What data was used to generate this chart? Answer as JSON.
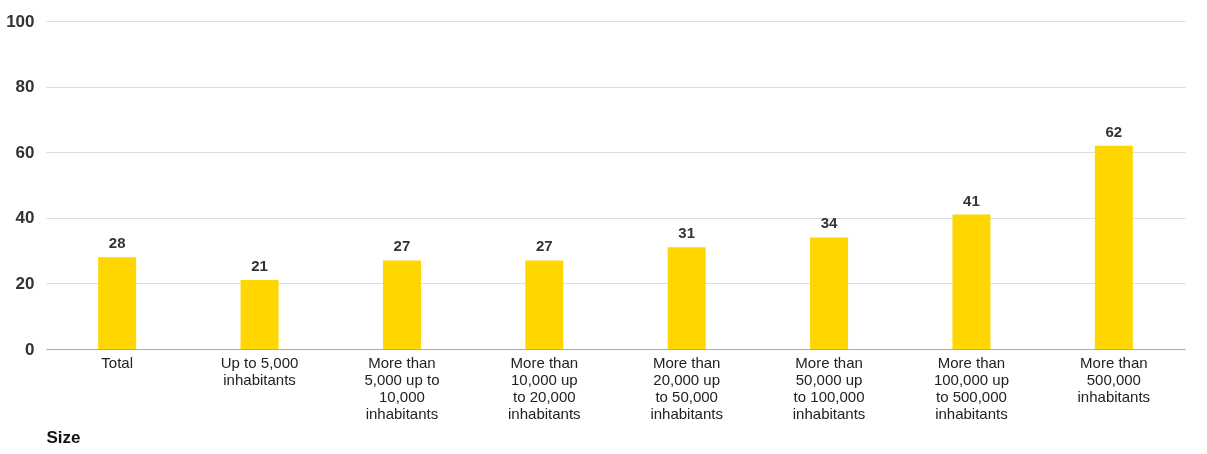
{
  "chart_data": {
    "type": "bar",
    "xlabel": "Size",
    "categories": [
      "Total",
      "Up to 5,000 inhabitants",
      "More than 5,000 up to 10,000 inhabitants",
      "More than 10,000 up to 20,000 inhabitants",
      "More than 20,000 up to 50,000 inhabitants",
      "More than 50,000 up to 100,000 inhabitants",
      "More than 100,000 up to 500,000 inhabitants",
      "More than 500,000 inhabitants"
    ],
    "values": [
      28,
      21,
      27,
      27,
      31,
      34,
      41,
      62
    ],
    "color": "#ffd600",
    "ylim": [
      0,
      100
    ],
    "yticks": [
      0,
      20,
      40,
      60,
      80,
      100
    ],
    "grid": "y",
    "data_labels": true
  }
}
